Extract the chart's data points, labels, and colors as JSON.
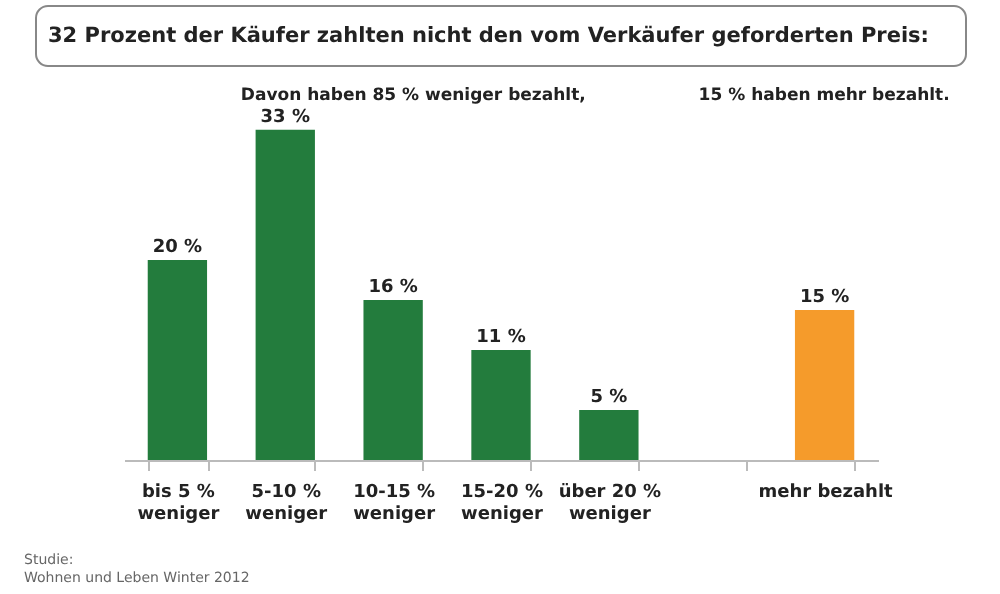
{
  "chart_data": {
    "type": "bar",
    "title": "32 Prozent der Käufer zahlten nicht den vom Verkäufer geforderten Preis:",
    "categories": [
      "bis 5 %\nweniger",
      "5-10 %\nweniger",
      "10-15 %\nweniger",
      "15-20 %\nweniger",
      "über 20 %\nweniger",
      null,
      "mehr bezahlt"
    ],
    "values": [
      20,
      33,
      16,
      11,
      5,
      null,
      15
    ],
    "colors": [
      "#237c3d",
      "#237c3d",
      "#237c3d",
      "#237c3d",
      "#237c3d",
      "#237c3d",
      "#f59b2b"
    ],
    "value_labels": [
      "20 %",
      "33 %",
      "16 %",
      "11 %",
      "5 %",
      null,
      "15 %"
    ],
    "annotations": [
      "Davon haben 85 % weniger bezahlt,",
      "15 % haben mehr bezahlt.",
      "Studie:\nWohnen und Leben Winter 2012"
    ]
  }
}
